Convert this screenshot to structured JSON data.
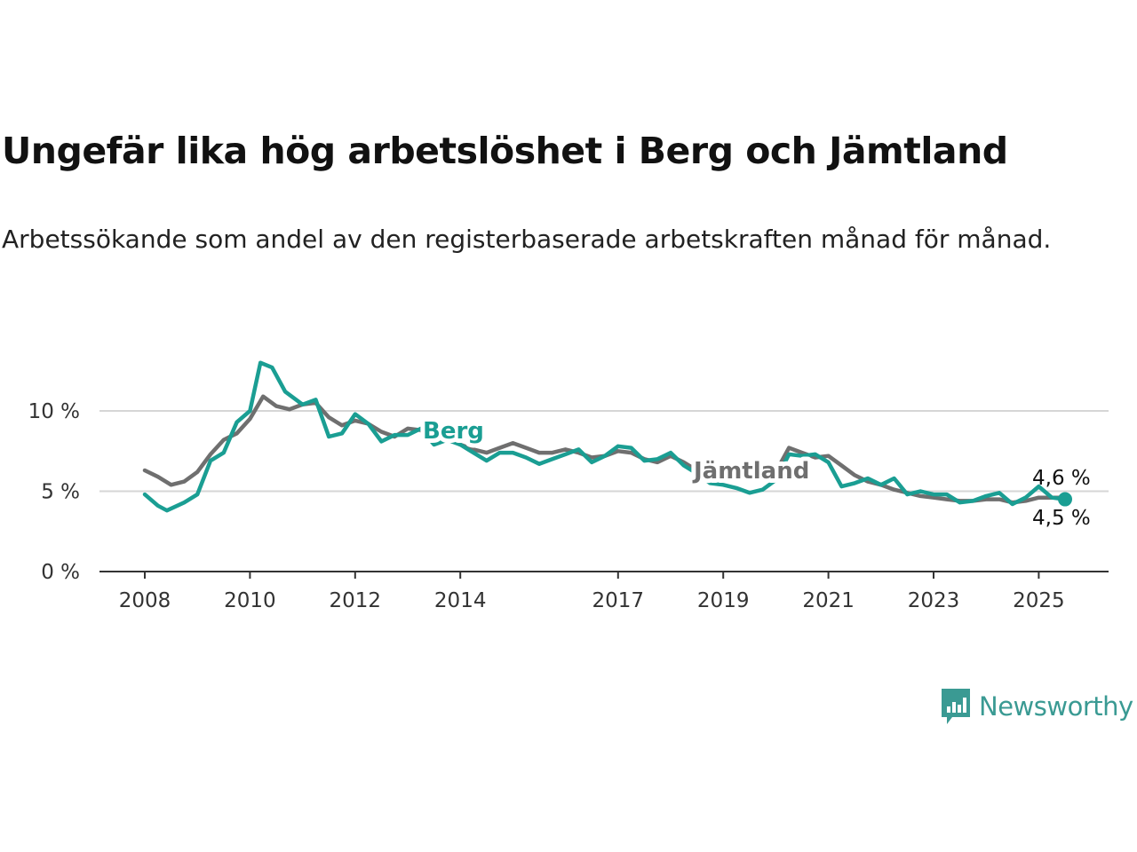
{
  "title": "Ungefär lika hög arbetslöshet i Berg och Jämtland",
  "subtitle": "Arbetssökande som andel av den registerbaserade arbetskraften månad för månad.",
  "brand": {
    "name": "Newsworthy",
    "color": "#3a9a93",
    "icon": "newsworthy-chart-bubble-icon"
  },
  "chart_data": {
    "type": "line",
    "xlim": [
      2008,
      2025.7
    ],
    "ylim": [
      0,
      14
    ],
    "x_ticks": [
      {
        "value": 2008,
        "label": "2008"
      },
      {
        "value": 2010,
        "label": "2010"
      },
      {
        "value": 2012,
        "label": "2012"
      },
      {
        "value": 2014,
        "label": "2014"
      },
      {
        "value": 2017,
        "label": "2017"
      },
      {
        "value": 2019,
        "label": "2019"
      },
      {
        "value": 2021,
        "label": "2021"
      },
      {
        "value": 2023,
        "label": "2023"
      },
      {
        "value": 2025,
        "label": "2025"
      }
    ],
    "y_ticks": [
      {
        "value": 0,
        "label": "0 %"
      },
      {
        "value": 5,
        "label": "5 %"
      },
      {
        "value": 10,
        "label": "10 %"
      }
    ],
    "grid": "horizontal",
    "series": [
      {
        "name": "Jämtland",
        "color": "#6f6f6f",
        "x": [
          2008.0,
          2008.25,
          2008.5,
          2008.75,
          2009.0,
          2009.25,
          2009.5,
          2009.75,
          2010.0,
          2010.25,
          2010.5,
          2010.75,
          2011.0,
          2011.25,
          2011.5,
          2011.75,
          2012.0,
          2012.25,
          2012.5,
          2012.75,
          2013.0,
          2013.25,
          2013.5,
          2013.75,
          2014.0,
          2014.25,
          2014.5,
          2014.75,
          2015.0,
          2015.25,
          2015.5,
          2015.75,
          2016.0,
          2016.25,
          2016.5,
          2016.75,
          2017.0,
          2017.25,
          2017.5,
          2017.75,
          2018.0,
          2018.25,
          2018.5,
          2018.75,
          2019.0,
          2019.25,
          2019.5,
          2019.75,
          2020.0,
          2020.25,
          2020.5,
          2020.75,
          2021.0,
          2021.25,
          2021.5,
          2021.75,
          2022.0,
          2022.25,
          2022.5,
          2022.75,
          2023.0,
          2023.25,
          2023.5,
          2023.75,
          2024.0,
          2024.25,
          2024.5,
          2024.75,
          2025.0,
          2025.25,
          2025.5
        ],
        "y": [
          6.3,
          5.9,
          5.4,
          5.6,
          6.2,
          7.3,
          8.2,
          8.6,
          9.5,
          10.9,
          10.3,
          10.1,
          10.4,
          10.5,
          9.6,
          9.1,
          9.4,
          9.2,
          8.7,
          8.4,
          8.9,
          8.8,
          8.1,
          8.3,
          7.9,
          7.6,
          7.4,
          7.7,
          8.0,
          7.7,
          7.4,
          7.4,
          7.6,
          7.4,
          7.1,
          7.2,
          7.5,
          7.4,
          7.0,
          6.8,
          7.2,
          6.8,
          6.3,
          6.2,
          6.3,
          6.1,
          6.0,
          5.9,
          6.2,
          7.7,
          7.4,
          7.1,
          7.2,
          6.6,
          6.0,
          5.6,
          5.4,
          5.1,
          4.9,
          4.7,
          4.6,
          4.5,
          4.4,
          4.4,
          4.5,
          4.5,
          4.3,
          4.4,
          4.6,
          4.6,
          4.6
        ]
      },
      {
        "name": "Berg",
        "color": "#1a9e93",
        "x": [
          2008.0,
          2008.25,
          2008.42,
          2008.75,
          2009.0,
          2009.25,
          2009.5,
          2009.75,
          2010.0,
          2010.2,
          2010.42,
          2010.67,
          2011.0,
          2011.25,
          2011.5,
          2011.75,
          2012.0,
          2012.25,
          2012.5,
          2012.75,
          2013.0,
          2013.25,
          2013.5,
          2013.75,
          2014.0,
          2014.25,
          2014.5,
          2014.75,
          2015.0,
          2015.25,
          2015.5,
          2015.75,
          2016.0,
          2016.25,
          2016.5,
          2016.75,
          2017.0,
          2017.25,
          2017.5,
          2017.75,
          2018.0,
          2018.25,
          2018.5,
          2018.75,
          2019.0,
          2019.25,
          2019.5,
          2019.75,
          2020.0,
          2020.25,
          2020.5,
          2020.75,
          2021.0,
          2021.25,
          2021.5,
          2021.75,
          2022.0,
          2022.25,
          2022.5,
          2022.75,
          2023.0,
          2023.25,
          2023.5,
          2023.75,
          2024.0,
          2024.25,
          2024.5,
          2024.75,
          2025.0,
          2025.25,
          2025.5
        ],
        "y": [
          4.8,
          4.1,
          3.8,
          4.3,
          4.8,
          6.9,
          7.4,
          9.3,
          10.0,
          13.0,
          12.7,
          11.2,
          10.4,
          10.7,
          8.4,
          8.6,
          9.8,
          9.2,
          8.1,
          8.5,
          8.5,
          8.9,
          7.9,
          8.2,
          7.9,
          7.4,
          6.9,
          7.4,
          7.4,
          7.1,
          6.7,
          7.0,
          7.3,
          7.6,
          6.8,
          7.2,
          7.8,
          7.7,
          6.9,
          7.0,
          7.4,
          6.6,
          6.1,
          5.5,
          5.4,
          5.2,
          4.9,
          5.1,
          5.7,
          7.3,
          7.2,
          7.3,
          6.8,
          5.3,
          5.5,
          5.8,
          5.4,
          5.8,
          4.8,
          5.0,
          4.8,
          4.8,
          4.3,
          4.4,
          4.7,
          4.9,
          4.2,
          4.6,
          5.3,
          4.6,
          4.5
        ]
      }
    ],
    "annotations": [
      {
        "text": "4,6 %",
        "series": "Jämtland"
      },
      {
        "text": "4,5 %",
        "series": "Berg"
      }
    ]
  }
}
